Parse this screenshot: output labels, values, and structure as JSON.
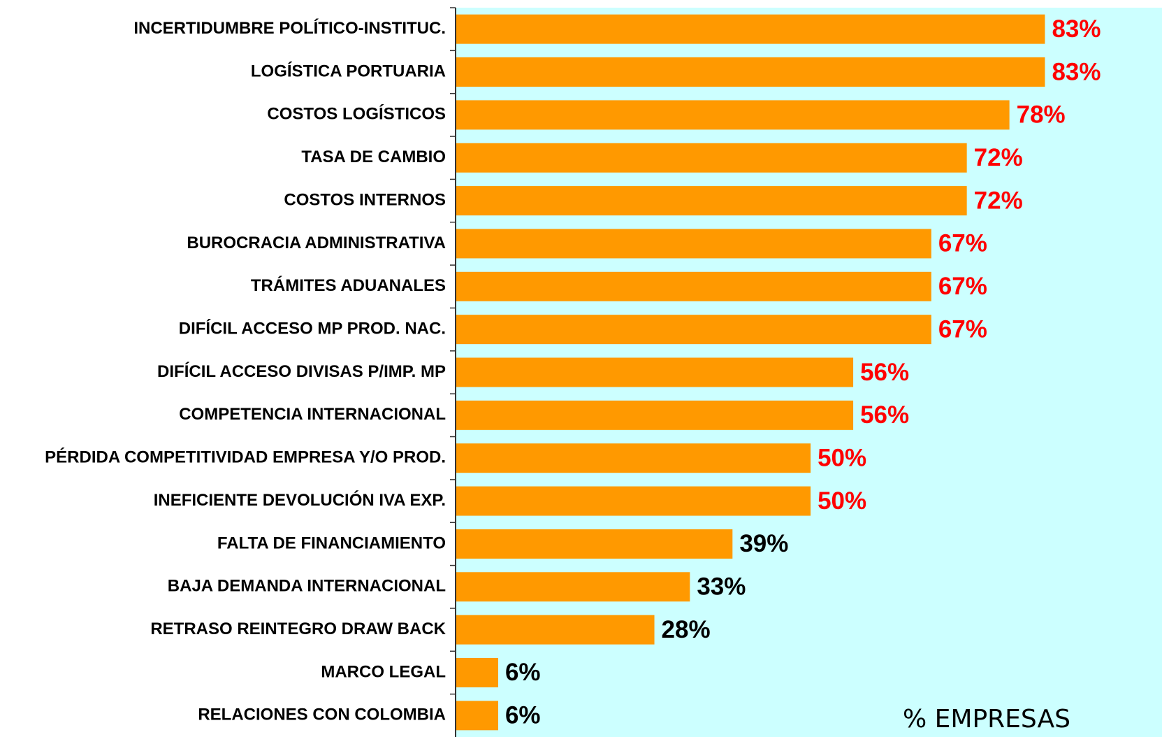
{
  "chart_data": {
    "type": "bar",
    "orientation": "horizontal",
    "x_label": "% EMPRESAS",
    "categories": [
      "INCERTIDUMBRE POLÍTICO-INSTITUC.",
      "LOGÍSTICA PORTUARIA",
      "COSTOS LOGÍSTICOS",
      "TASA DE CAMBIO",
      "COSTOS INTERNOS",
      "BUROCRACIA ADMINISTRATIVA",
      "TRÁMITES ADUANALES",
      "DIFÍCIL ACCESO MP PROD. NAC.",
      "DIFÍCIL ACCESO DIVISAS P/IMP. MP",
      "COMPETENCIA INTERNACIONAL",
      "PÉRDIDA COMPETITIVIDAD EMPRESA Y/O PROD.",
      "INEFICIENTE DEVOLUCIÓN IVA EXP.",
      "FALTA DE FINANCIAMIENTO",
      "BAJA DEMANDA INTERNACIONAL",
      "RETRASO REINTEGRO DRAW BACK",
      "MARCO LEGAL",
      "RELACIONES CON COLOMBIA"
    ],
    "values": [
      83,
      83,
      78,
      72,
      72,
      67,
      67,
      67,
      56,
      56,
      50,
      50,
      39,
      33,
      28,
      6,
      6
    ],
    "value_labels": [
      "83%",
      "83%",
      "78%",
      "72%",
      "72%",
      "67%",
      "67%",
      "67%",
      "56%",
      "56%",
      "50%",
      "50%",
      "39%",
      "33%",
      "28%",
      "6%",
      "6%"
    ],
    "value_label_colors": [
      "#ff0000",
      "#ff0000",
      "#ff0000",
      "#ff0000",
      "#ff0000",
      "#ff0000",
      "#ff0000",
      "#ff0000",
      "#ff0000",
      "#ff0000",
      "#ff0000",
      "#ff0000",
      "#000000",
      "#000000",
      "#000000",
      "#000000",
      "#000000"
    ],
    "color": "#ff9900",
    "background": "#ccffff",
    "xlim": [
      0,
      100
    ]
  }
}
